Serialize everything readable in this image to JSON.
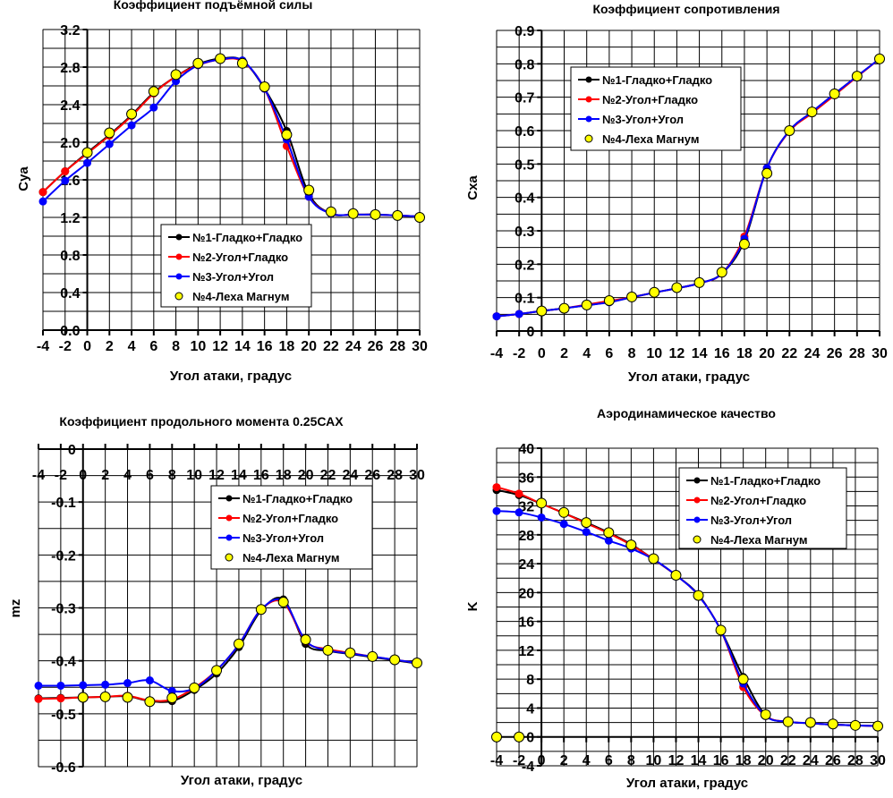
{
  "chart_data": [
    {
      "id": "cya",
      "type": "line",
      "title": "Коэффициент подъёмной силы",
      "xlabel": "Угол атаки, градус",
      "ylabel": "Cya",
      "xlim": [
        -4,
        30
      ],
      "ylim": [
        0,
        3.2
      ],
      "x_ticks": [
        -4,
        -2,
        0,
        2,
        4,
        6,
        8,
        10,
        12,
        14,
        16,
        18,
        20,
        22,
        24,
        26,
        28,
        30
      ],
      "y_ticks": [
        0,
        0.4,
        0.8,
        1.2,
        1.6,
        2.0,
        2.4,
        2.8,
        3.2
      ],
      "y_tick_labels": [
        "0.0",
        "0.4",
        "0.8",
        "1.2",
        "1.6",
        "2.0",
        "2.4",
        "2.8",
        "3.2"
      ],
      "y_minor_step": 0.2,
      "grid": true,
      "legend_position": "center-left",
      "legend_label_overflow": true,
      "series": [
        {
          "name": "№1-Гладко+Гладко",
          "color": "#000000",
          "marker": "dot",
          "x": [
            -4,
            -2,
            0,
            2,
            4,
            6,
            8,
            10,
            12,
            14,
            16,
            18,
            20,
            22,
            24,
            26,
            28,
            30
          ],
          "y": [
            1.47,
            1.69,
            1.89,
            2.08,
            2.29,
            2.53,
            2.7,
            2.83,
            2.89,
            2.87,
            2.57,
            2.12,
            1.45,
            1.24,
            1.23,
            1.23,
            1.22,
            1.21
          ]
        },
        {
          "name": "№2-Угол+Гладко",
          "color": "#ff0000",
          "marker": "dot",
          "x": [
            -4,
            -2,
            0,
            2,
            4,
            6,
            8,
            10,
            12,
            14,
            16,
            18,
            20,
            22,
            24,
            26,
            28,
            30
          ],
          "y": [
            1.47,
            1.69,
            1.88,
            2.07,
            2.28,
            2.52,
            2.7,
            2.82,
            2.88,
            2.86,
            2.57,
            1.96,
            1.42,
            1.24,
            1.23,
            1.23,
            1.22,
            1.21
          ]
        },
        {
          "name": "№3-Угол+Угол",
          "color": "#0000ff",
          "marker": "dot",
          "x": [
            -4,
            -2,
            0,
            2,
            4,
            6,
            8,
            10,
            12,
            14,
            16,
            18,
            20,
            22,
            24,
            26,
            28,
            30
          ],
          "y": [
            1.37,
            1.59,
            1.78,
            1.98,
            2.18,
            2.37,
            2.65,
            2.82,
            2.88,
            2.87,
            2.57,
            2.03,
            1.42,
            1.24,
            1.23,
            1.23,
            1.22,
            1.21
          ]
        },
        {
          "name": "№4-Леха Магнум",
          "color": "#ffff00",
          "marker": "circle",
          "line": false,
          "x": [
            0,
            2,
            4,
            6,
            8,
            10,
            12,
            14,
            16,
            18,
            20,
            22,
            24,
            26,
            28,
            30
          ],
          "y": [
            1.89,
            2.1,
            2.3,
            2.54,
            2.72,
            2.84,
            2.89,
            2.84,
            2.59,
            2.08,
            1.49,
            1.26,
            1.24,
            1.23,
            1.22,
            1.2
          ]
        }
      ]
    },
    {
      "id": "cxa",
      "type": "line",
      "title": "Коэффициент сопротивления",
      "xlabel": "Угол атаки, градус",
      "ylabel": "Cxa",
      "xlim": [
        -4,
        30
      ],
      "ylim": [
        0,
        0.9
      ],
      "x_ticks": [
        -4,
        -2,
        0,
        2,
        4,
        6,
        8,
        10,
        12,
        14,
        16,
        18,
        20,
        22,
        24,
        26,
        28,
        30
      ],
      "y_ticks": [
        0,
        0.1,
        0.2,
        0.3,
        0.4,
        0.5,
        0.6,
        0.7,
        0.8,
        0.9
      ],
      "y_tick_labels": [
        "0",
        "0.1",
        "0.2",
        "0.3",
        "0.4",
        "0.5",
        "0.6",
        "0.7",
        "0.8",
        "0.9"
      ],
      "y_minor_step": 0.05,
      "grid": true,
      "legend_position": "top-left",
      "legend_label_overflow": false,
      "series": [
        {
          "name": "№1-Гладко+Гладко",
          "color": "#000000",
          "marker": "dot",
          "x": [
            -4,
            -2,
            0,
            2,
            4,
            6,
            8,
            10,
            12,
            14,
            16,
            18,
            20,
            22,
            24,
            26,
            28,
            30
          ],
          "y": [
            0.044,
            0.051,
            0.06,
            0.068,
            0.077,
            0.087,
            0.101,
            0.115,
            0.128,
            0.143,
            0.172,
            0.27,
            0.488,
            0.6,
            0.656,
            0.71,
            0.763,
            0.815
          ]
        },
        {
          "name": "№2-Угол+Гладко",
          "color": "#ff0000",
          "marker": "dot",
          "x": [
            -4,
            -2,
            0,
            2,
            4,
            6,
            8,
            10,
            12,
            14,
            16,
            18,
            20,
            22,
            24,
            26,
            28,
            30
          ],
          "y": [
            0.044,
            0.051,
            0.06,
            0.068,
            0.079,
            0.09,
            0.101,
            0.115,
            0.128,
            0.143,
            0.172,
            0.283,
            0.488,
            0.598,
            0.652,
            0.706,
            0.761,
            0.815
          ]
        },
        {
          "name": "№3-Угол+Угол",
          "color": "#0000ff",
          "marker": "dot",
          "x": [
            -4,
            -2,
            0,
            2,
            4,
            6,
            8,
            10,
            12,
            14,
            16,
            18,
            20,
            22,
            24,
            26,
            28,
            30
          ],
          "y": [
            0.044,
            0.051,
            0.06,
            0.068,
            0.077,
            0.086,
            0.101,
            0.115,
            0.128,
            0.143,
            0.172,
            0.276,
            0.488,
            0.6,
            0.656,
            0.71,
            0.763,
            0.815
          ]
        },
        {
          "name": "№4-Леха Магнум",
          "color": "#ffff00",
          "marker": "circle",
          "line": false,
          "x": [
            0,
            2,
            4,
            6,
            8,
            10,
            12,
            14,
            16,
            18,
            20,
            22,
            24,
            26,
            28,
            30
          ],
          "y": [
            0.06,
            0.068,
            0.078,
            0.091,
            0.102,
            0.116,
            0.13,
            0.145,
            0.176,
            0.26,
            0.472,
            0.6,
            0.656,
            0.71,
            0.763,
            0.815
          ]
        }
      ]
    },
    {
      "id": "mz",
      "type": "line",
      "title": "Коэффициент продольного момента 0.25САХ",
      "xlabel": "Угол атаки, градус",
      "ylabel": "mz",
      "xlim": [
        -4,
        30
      ],
      "ylim": [
        -0.6,
        0
      ],
      "x_axis_at": 0,
      "x_ticks": [
        -4,
        -2,
        0,
        2,
        4,
        6,
        8,
        10,
        12,
        14,
        16,
        18,
        20,
        22,
        24,
        26,
        28,
        30
      ],
      "y_ticks": [
        -0.6,
        -0.5,
        -0.4,
        -0.3,
        -0.2,
        -0.1,
        0
      ],
      "y_tick_labels": [
        "-0.6",
        "-0.5",
        "-0.4",
        "-0.3",
        "-0.2",
        "-0.1",
        "0"
      ],
      "y_minor_step": 0.05,
      "grid": true,
      "legend_position": "top-right",
      "legend_label_overflow": false,
      "series": [
        {
          "name": "№1-Гладко+Гладко",
          "color": "#000000",
          "marker": "dot",
          "x": [
            -4,
            -2,
            0,
            2,
            4,
            6,
            8,
            10,
            12,
            14,
            16,
            18,
            20,
            22,
            24,
            26,
            28,
            30
          ],
          "y": [
            -0.471,
            -0.47,
            -0.469,
            -0.468,
            -0.467,
            -0.476,
            -0.476,
            -0.455,
            -0.424,
            -0.374,
            -0.305,
            -0.284,
            -0.368,
            -0.381,
            -0.387,
            -0.393,
            -0.399,
            -0.405
          ]
        },
        {
          "name": "№2-Угол+Гладко",
          "color": "#ff0000",
          "marker": "dot",
          "x": [
            -4,
            -2,
            0,
            2,
            4,
            6,
            8,
            10,
            12,
            14,
            16,
            18,
            20,
            22,
            24,
            26,
            28,
            30
          ],
          "y": [
            -0.472,
            -0.471,
            -0.469,
            -0.468,
            -0.466,
            -0.475,
            -0.473,
            -0.451,
            -0.418,
            -0.369,
            -0.303,
            -0.29,
            -0.363,
            -0.378,
            -0.385,
            -0.392,
            -0.398,
            -0.404
          ]
        },
        {
          "name": "№3-Угол+Угол",
          "color": "#0000ff",
          "marker": "dot",
          "x": [
            -4,
            -2,
            0,
            2,
            4,
            6,
            8,
            10,
            12,
            14,
            16,
            18,
            20,
            22,
            24,
            26,
            28,
            30
          ],
          "y": [
            -0.447,
            -0.447,
            -0.446,
            -0.445,
            -0.442,
            -0.437,
            -0.457,
            -0.452,
            -0.418,
            -0.369,
            -0.303,
            -0.287,
            -0.362,
            -0.38,
            -0.386,
            -0.392,
            -0.398,
            -0.404
          ]
        },
        {
          "name": "№4-Леха Магнум",
          "color": "#ffff00",
          "marker": "circle",
          "line": false,
          "x": [
            0,
            2,
            4,
            6,
            8,
            10,
            12,
            14,
            16,
            18,
            20,
            22,
            24,
            26,
            28,
            30
          ],
          "y": [
            -0.469,
            -0.468,
            -0.469,
            -0.477,
            -0.47,
            -0.451,
            -0.418,
            -0.368,
            -0.303,
            -0.289,
            -0.36,
            -0.38,
            -0.385,
            -0.392,
            -0.398,
            -0.404
          ]
        }
      ]
    },
    {
      "id": "k",
      "type": "line",
      "title": "Аэродинамическое качество",
      "xlabel": "Угол атаки, градус",
      "ylabel": "K",
      "xlim": [
        -4,
        30
      ],
      "ylim": [
        -4,
        40
      ],
      "x_axis_at": 0,
      "x_ticks": [
        -4,
        -2,
        0,
        2,
        4,
        6,
        8,
        10,
        12,
        14,
        16,
        18,
        20,
        22,
        24,
        26,
        28,
        30
      ],
      "y_ticks": [
        -4,
        0,
        4,
        8,
        12,
        16,
        20,
        24,
        28,
        32,
        36,
        40
      ],
      "y_tick_labels": [
        "-4",
        "0",
        "4",
        "8",
        "12",
        "16",
        "20",
        "24",
        "28",
        "32",
        "36",
        "40"
      ],
      "y_minor_step": 2,
      "grid": true,
      "legend_position": "top-right",
      "legend_label_overflow": false,
      "series": [
        {
          "name": "№1-Гладко+Гладко",
          "color": "#000000",
          "marker": "dot",
          "x": [
            -4,
            -2,
            0,
            2,
            4,
            6,
            8,
            10,
            12,
            14,
            16,
            18,
            20,
            22,
            24,
            26,
            28,
            30
          ],
          "y": [
            34.2,
            33.5,
            32.3,
            31.0,
            29.7,
            28.3,
            26.7,
            24.6,
            22.4,
            19.7,
            14.8,
            8.3,
            3.0,
            2.1,
            1.9,
            1.7,
            1.6,
            1.5
          ]
        },
        {
          "name": "№2-Угол+Гладко",
          "color": "#ff0000",
          "marker": "dot",
          "x": [
            -4,
            -2,
            0,
            2,
            4,
            6,
            8,
            10,
            12,
            14,
            16,
            18,
            20,
            22,
            24,
            26,
            28,
            30
          ],
          "y": [
            34.6,
            33.7,
            32.3,
            31.0,
            29.6,
            28.2,
            26.6,
            24.6,
            22.4,
            19.6,
            14.8,
            6.9,
            2.9,
            2.1,
            1.9,
            1.7,
            1.6,
            1.5
          ]
        },
        {
          "name": "№3-Угол+Угол",
          "color": "#0000ff",
          "marker": "dot",
          "x": [
            -4,
            -2,
            0,
            2,
            4,
            6,
            8,
            10,
            12,
            14,
            16,
            18,
            20,
            22,
            24,
            26,
            28,
            30
          ],
          "y": [
            31.3,
            31.1,
            30.4,
            29.5,
            28.4,
            27.2,
            26.1,
            24.6,
            22.4,
            19.6,
            14.8,
            7.4,
            2.9,
            2.1,
            1.9,
            1.7,
            1.6,
            1.5
          ]
        },
        {
          "name": "№4-Леха Магнум",
          "color": "#ffff00",
          "marker": "circle",
          "line": false,
          "x": [
            -4,
            -2,
            0,
            2,
            4,
            6,
            8,
            10,
            12,
            14,
            16,
            18,
            20,
            22,
            24,
            26,
            28,
            30
          ],
          "y": [
            0,
            0,
            32.4,
            31.1,
            29.7,
            28.3,
            26.6,
            24.7,
            22.4,
            19.6,
            14.8,
            8.0,
            3.1,
            2.1,
            2.0,
            1.8,
            1.6,
            1.5
          ]
        }
      ]
    }
  ]
}
